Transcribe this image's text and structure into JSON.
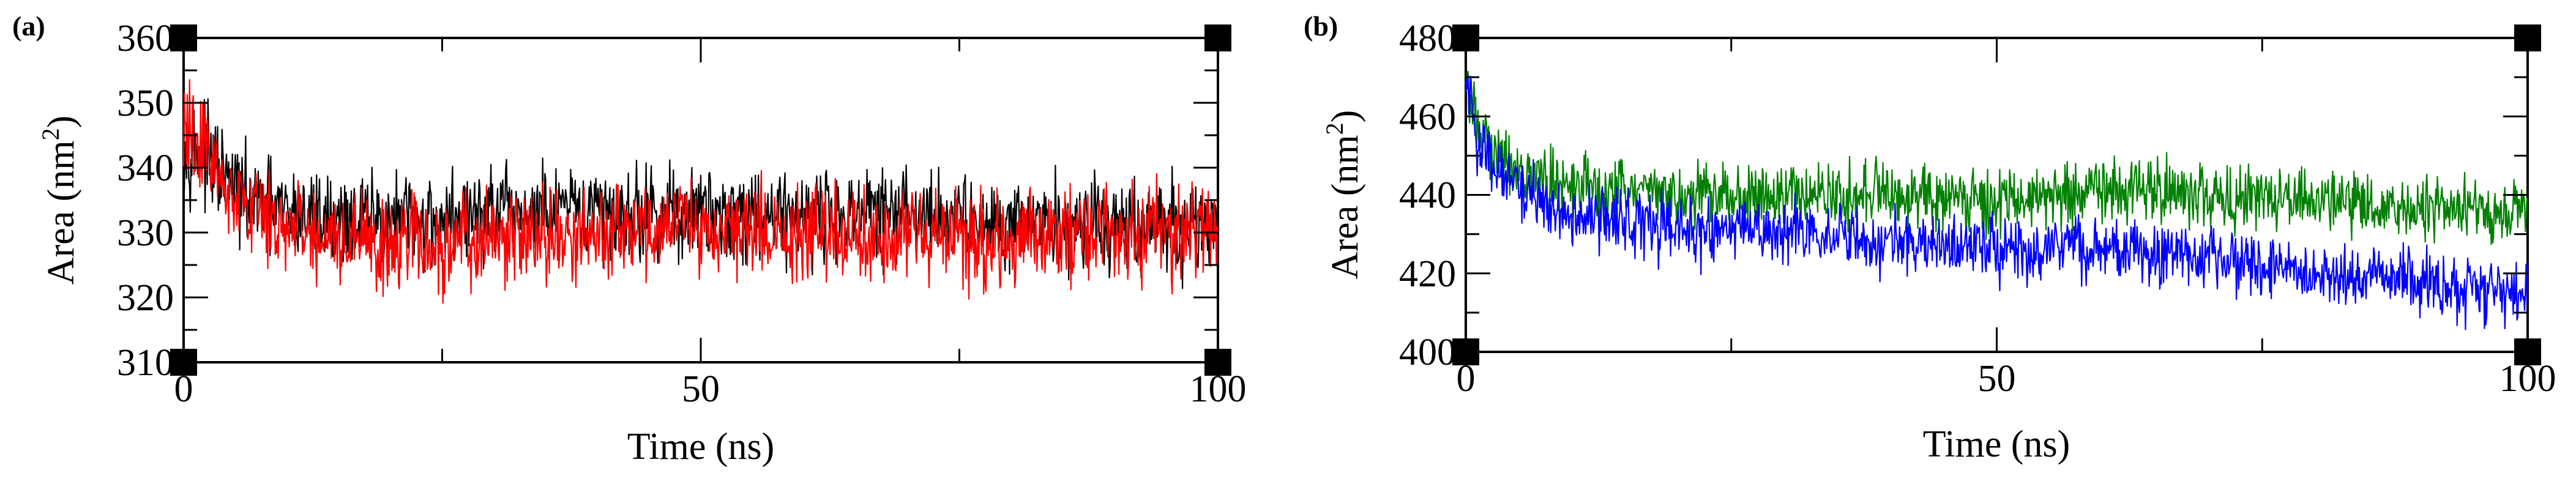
{
  "chart_data": [
    {
      "type": "line",
      "panel_label": "(a)",
      "xlabel": "Time (ns)",
      "ylabel": "Area (nm",
      "ylabel_sup": "2",
      "ylabel_close": ")",
      "xlim": [
        0,
        100
      ],
      "ylim": [
        310,
        360
      ],
      "xticks": [
        0,
        50,
        100
      ],
      "yticks": [
        310,
        320,
        330,
        340,
        350,
        360
      ],
      "grid": false,
      "series": [
        {
          "color": "#000000",
          "x": [
            0,
            2,
            4,
            6,
            10,
            15,
            20,
            25,
            30,
            40,
            50,
            60,
            70,
            80,
            90,
            100
          ],
          "values": [
            344,
            342,
            338,
            335,
            333,
            332,
            332,
            332,
            333,
            333,
            333,
            333,
            333,
            332,
            331,
            331
          ],
          "noise": 3.5
        },
        {
          "color": "#ff0000",
          "x": [
            0,
            2,
            4,
            6,
            10,
            15,
            20,
            25,
            30,
            40,
            50,
            60,
            70,
            80,
            90,
            100
          ],
          "values": [
            346,
            343,
            338,
            334,
            331,
            329,
            328,
            327,
            329,
            330,
            331,
            330,
            329,
            329,
            330,
            330
          ],
          "noise": 3.5
        }
      ]
    },
    {
      "type": "line",
      "panel_label": "(b)",
      "xlabel": "Time (ns)",
      "ylabel": "Area (nm",
      "ylabel_sup": "2",
      "ylabel_close": ")",
      "xlim": [
        0,
        100
      ],
      "ylim": [
        400,
        480
      ],
      "xticks": [
        0,
        50,
        100
      ],
      "yticks": [
        400,
        420,
        440,
        460,
        480
      ],
      "grid": false,
      "series": [
        {
          "color": "#008000",
          "x": [
            0,
            1,
            3,
            6,
            10,
            20,
            30,
            40,
            50,
            60,
            65,
            70,
            80,
            90,
            100
          ],
          "values": [
            468,
            458,
            450,
            445,
            442,
            440,
            440,
            440,
            439,
            441,
            442,
            440,
            439,
            436,
            436
          ],
          "noise": 4
        },
        {
          "color": "#0000ff",
          "x": [
            0,
            1,
            3,
            6,
            10,
            20,
            30,
            40,
            50,
            60,
            70,
            80,
            90,
            100
          ],
          "values": [
            472,
            456,
            446,
            440,
            435,
            431,
            430,
            428,
            426,
            426,
            424,
            420,
            418,
            414
          ],
          "noise": 4
        }
      ]
    }
  ]
}
